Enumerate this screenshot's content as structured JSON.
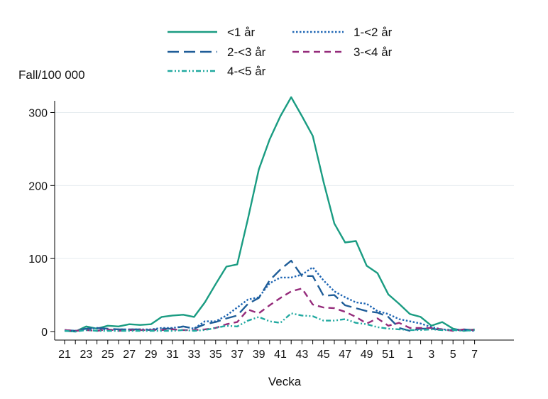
{
  "chart_data": {
    "type": "line",
    "title": "",
    "xlabel": "Vecka",
    "ylabel": "Fall/100 000",
    "ylim": [
      0,
      340
    ],
    "yticks": [
      0,
      100,
      200,
      300
    ],
    "grid": "horizontal",
    "legend_position": "top",
    "x": [
      "21",
      "22",
      "23",
      "24",
      "25",
      "26",
      "27",
      "28",
      "29",
      "30",
      "31",
      "32",
      "33",
      "34",
      "35",
      "36",
      "37",
      "38",
      "39",
      "40",
      "41",
      "42",
      "43",
      "44",
      "45",
      "46",
      "47",
      "48",
      "49",
      "50",
      "51",
      "52",
      "1",
      "2",
      "3",
      "4",
      "5",
      "6",
      "7"
    ],
    "xtick_labels": [
      "21",
      "23",
      "25",
      "27",
      "29",
      "31",
      "33",
      "35",
      "37",
      "39",
      "41",
      "43",
      "45",
      "47",
      "49",
      "51",
      "1",
      "3",
      "5",
      "7"
    ],
    "series": [
      {
        "name": "<1 år",
        "color": "#1a9c82",
        "dash": "solid",
        "values": [
          1,
          0,
          7,
          4,
          8,
          7,
          10,
          9,
          10,
          20,
          22,
          23,
          20,
          40,
          65,
          89,
          92,
          155,
          222,
          263,
          295,
          321,
          295,
          268,
          205,
          148,
          122,
          124,
          90,
          80,
          51,
          38,
          24,
          20,
          8,
          13,
          4,
          1,
          3
        ]
      },
      {
        "name": "1-<2 år",
        "color": "#1f66b4",
        "dash": "dotted",
        "values": [
          2,
          1,
          3,
          5,
          2,
          3,
          3,
          3,
          3,
          5,
          5,
          7,
          4,
          14,
          14,
          22,
          33,
          44,
          47,
          66,
          74,
          74,
          78,
          88,
          70,
          55,
          47,
          40,
          38,
          28,
          24,
          17,
          14,
          11,
          6,
          3,
          2,
          2,
          1
        ]
      },
      {
        "name": "2-<3 år",
        "color": "#1f5d98",
        "dash": "longdash",
        "values": [
          2,
          1,
          4,
          5,
          4,
          3,
          3,
          3,
          2,
          4,
          4,
          7,
          4,
          10,
          13,
          18,
          22,
          38,
          46,
          70,
          85,
          97,
          76,
          76,
          49,
          50,
          36,
          32,
          28,
          26,
          20,
          5,
          1,
          4,
          4,
          2,
          2,
          3,
          2
        ]
      },
      {
        "name": "3-<4 år",
        "color": "#952b7b",
        "dash": "dash",
        "values": [
          2,
          1,
          2,
          1,
          3,
          1,
          2,
          2,
          2,
          2,
          3,
          2,
          2,
          3,
          5,
          10,
          13,
          30,
          25,
          36,
          46,
          55,
          59,
          37,
          33,
          32,
          27,
          20,
          11,
          18,
          8,
          12,
          5,
          5,
          5,
          3,
          1,
          3,
          2
        ]
      },
      {
        "name": "4-<5 år",
        "color": "#21a9a0",
        "dash": "dashdot",
        "values": [
          1,
          0,
          2,
          1,
          1,
          1,
          1,
          1,
          1,
          1,
          1,
          2,
          1,
          2,
          5,
          8,
          7,
          15,
          20,
          14,
          12,
          25,
          22,
          21,
          15,
          15,
          17,
          12,
          10,
          6,
          4,
          3,
          2,
          2,
          3,
          2,
          2,
          1,
          2
        ]
      }
    ]
  }
}
